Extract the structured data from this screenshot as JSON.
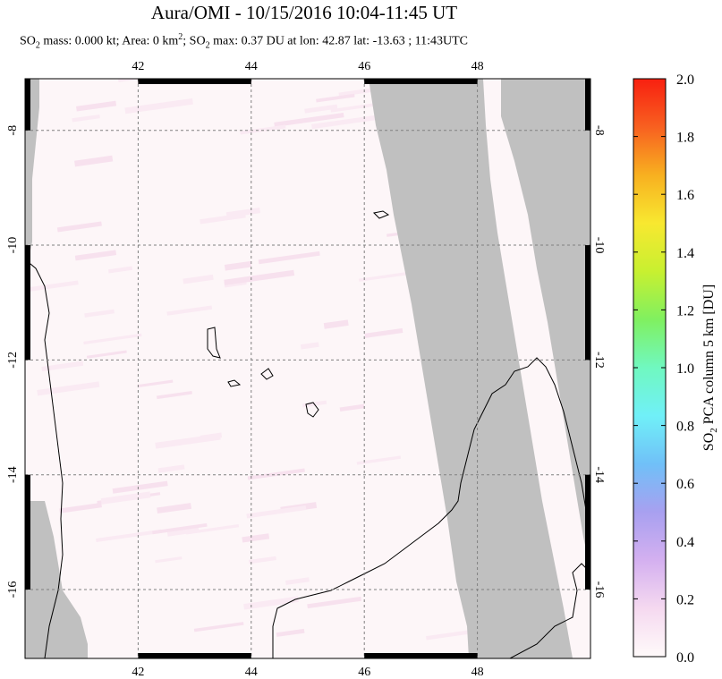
{
  "title": "Aura/OMI - 10/15/2016 10:04-11:45 UT",
  "subtitle": {
    "prefix": "SO",
    "sub1": "2",
    "part1": " mass: 0.000 kt; Area: 0 km",
    "sup": "2",
    "part2": "; SO",
    "sub2": "2",
    "part3": " max: 0.37 DU at lon: 42.87 lat: -13.63 ; 11:43UTC"
  },
  "colorbar": {
    "label": "SO2 PCA column 5 km [DU]",
    "label_parts": {
      "a": "SO",
      "sub": "2",
      "b": " PCA column 5 km [DU]"
    },
    "ticks": [
      "0.0",
      "0.2",
      "0.4",
      "0.6",
      "0.8",
      "1.0",
      "1.2",
      "1.4",
      "1.6",
      "1.8",
      "2.0"
    ],
    "range": [
      0.0,
      2.0
    ],
    "colors": [
      "#fffafa",
      "#f5d9f0",
      "#d4b0f0",
      "#a8a0f0",
      "#70c0f8",
      "#70f0f8",
      "#70f8c0",
      "#80f060",
      "#c8f030",
      "#f8e830",
      "#f8b020",
      "#f86020",
      "#f82010"
    ]
  },
  "chart_data": {
    "type": "heatmap",
    "title": "Aura/OMI - 10/15/2016 10:04-11:45 UT",
    "xlabel": "",
    "ylabel": "",
    "x_ticks": [
      42,
      44,
      46,
      48
    ],
    "y_ticks": [
      -8,
      -10,
      -12,
      -14,
      -16
    ],
    "xlim": [
      40,
      50
    ],
    "ylim": [
      -17.2,
      -7.1
    ],
    "grid": true,
    "max_value": 0.37,
    "max_location": {
      "lon": 42.87,
      "lat": -13.63
    },
    "no_data_color": "#c0c0c0",
    "background_color": "#fdf6f8"
  }
}
